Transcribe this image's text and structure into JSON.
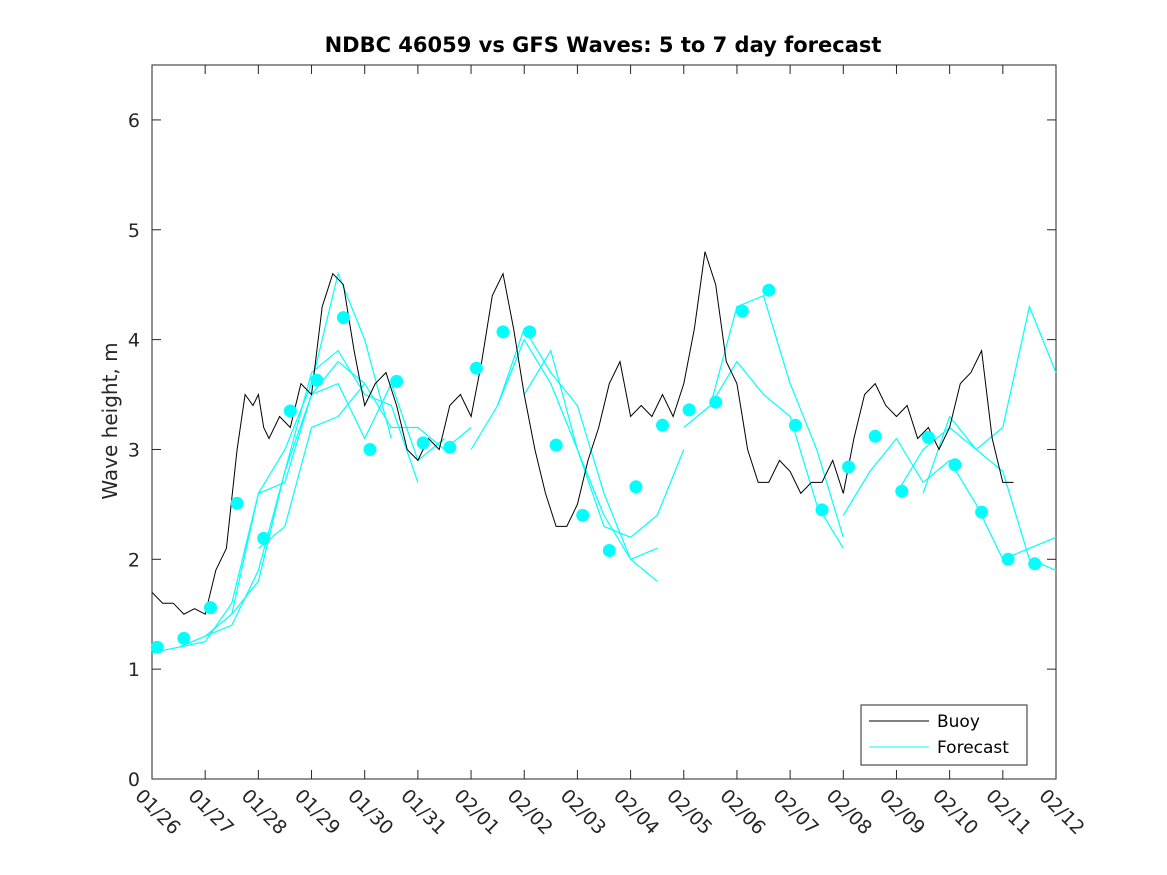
{
  "chart_data": {
    "type": "line",
    "title": "NDBC 46059 vs GFS Waves: 5 to 7 day forecast",
    "xlabel": "",
    "ylabel": "Wave height, m",
    "xlim": [
      0,
      17
    ],
    "ylim": [
      0,
      6.5
    ],
    "x_ticks": [
      0,
      1,
      2,
      3,
      4,
      5,
      6,
      7,
      8,
      9,
      10,
      11,
      12,
      13,
      14,
      15,
      16,
      17
    ],
    "x_tick_labels": [
      "01/26",
      "01/27",
      "01/28",
      "01/29",
      "01/30",
      "01/31",
      "02/01",
      "02/02",
      "02/03",
      "02/04",
      "02/05",
      "02/06",
      "02/07",
      "02/08",
      "02/09",
      "02/10",
      "02/11",
      "02/12"
    ],
    "y_ticks": [
      0,
      1,
      2,
      3,
      4,
      5,
      6
    ],
    "y_tick_labels": [
      "0",
      "1",
      "2",
      "3",
      "4",
      "5",
      "6"
    ],
    "legend": {
      "position": "bottom-right",
      "entries": [
        "Buoy",
        "Forecast"
      ]
    },
    "colors": {
      "buoy": "#000000",
      "forecast": "#00ffff",
      "axis": "#262626"
    },
    "series": [
      {
        "name": "Buoy",
        "x": [
          0,
          0.2,
          0.4,
          0.6,
          0.8,
          1.0,
          1.2,
          1.4,
          1.6,
          1.75,
          1.9,
          2.0,
          2.1,
          2.2,
          2.4,
          2.6,
          2.8,
          3.0,
          3.2,
          3.4,
          3.6,
          3.8,
          4.0,
          4.2,
          4.4,
          4.6,
          4.8,
          5.0,
          5.2,
          5.4,
          5.6,
          5.8,
          6.0,
          6.2,
          6.4,
          6.6,
          6.8,
          6.9,
          7.0,
          7.2,
          7.4,
          7.6,
          7.8,
          8.0,
          8.2,
          8.4,
          8.6,
          8.8,
          9.0,
          9.2,
          9.4,
          9.6,
          9.8,
          10.0,
          10.2,
          10.4,
          10.6,
          10.8,
          11.0,
          11.1,
          11.2,
          11.4,
          11.6,
          11.8,
          12.0,
          12.2,
          12.4,
          12.6,
          12.8,
          13.0,
          13.2,
          13.4,
          13.6,
          13.8,
          14.0,
          14.2,
          14.4,
          14.6,
          14.8,
          15.0,
          15.2,
          15.4,
          15.6,
          15.8,
          16.0,
          16.2
        ],
        "y": [
          1.7,
          1.6,
          1.6,
          1.5,
          1.55,
          1.5,
          1.9,
          2.1,
          3.0,
          3.5,
          3.4,
          3.5,
          3.2,
          3.1,
          3.3,
          3.2,
          3.6,
          3.5,
          4.3,
          4.6,
          4.5,
          3.9,
          3.4,
          3.6,
          3.7,
          3.4,
          3.0,
          2.9,
          3.1,
          3.0,
          3.4,
          3.5,
          3.3,
          3.8,
          4.4,
          4.6,
          4.1,
          3.8,
          3.5,
          3.0,
          2.6,
          2.3,
          2.3,
          2.5,
          2.9,
          3.2,
          3.6,
          3.8,
          3.3,
          3.4,
          3.3,
          3.5,
          3.3,
          3.6,
          4.1,
          4.8,
          4.5,
          3.8,
          3.6,
          3.3,
          3.0,
          2.7,
          2.7,
          2.9,
          2.8,
          2.6,
          2.7,
          2.7,
          2.9,
          2.6,
          3.1,
          3.5,
          3.6,
          3.4,
          3.3,
          3.4,
          3.1,
          3.2,
          3.0,
          3.2,
          3.6,
          3.7,
          3.9,
          3.1,
          2.7,
          2.7
        ]
      },
      {
        "name": "Forecast",
        "segments": [
          {
            "x": [
              0,
              0.5,
              1.0,
              1.5,
              2.0,
              2.5,
              3.0,
              3.5,
              4.0
            ],
            "y": [
              1.15,
              1.2,
              1.3,
              1.5,
              1.8,
              2.8,
              3.5,
              3.8,
              3.6
            ]
          },
          {
            "x": [
              0.5,
              1.0,
              1.5,
              2.0,
              2.5,
              3.0,
              3.5,
              4.0,
              4.5
            ],
            "y": [
              1.2,
              1.25,
              1.6,
              2.6,
              3.0,
              3.6,
              4.6,
              4.0,
              3.1
            ]
          },
          {
            "x": [
              1.0,
              1.5,
              2.0,
              2.5,
              3.0,
              3.5,
              4.0,
              4.5,
              5.0
            ],
            "y": [
              1.3,
              1.4,
              1.9,
              2.8,
              3.7,
              3.9,
              3.5,
              3.4,
              2.7
            ]
          },
          {
            "x": [
              1.5,
              2.0,
              2.5,
              3.0,
              3.5,
              4.0,
              4.5,
              5.0,
              5.5
            ],
            "y": [
              1.5,
              2.6,
              2.7,
              3.5,
              3.6,
              3.1,
              3.6,
              2.9,
              3.1
            ]
          },
          {
            "x": [
              2.0,
              2.5,
              3.0,
              3.5,
              4.0,
              4.5,
              5.0,
              5.5,
              6.0
            ],
            "y": [
              2.1,
              2.3,
              3.2,
              3.3,
              3.6,
              3.2,
              3.2,
              3.0,
              3.2
            ]
          },
          {
            "x": [
              6.0,
              6.5,
              7.0,
              7.5,
              8.0,
              8.5,
              9.0,
              9.5
            ],
            "y": [
              3.0,
              3.4,
              4.1,
              3.7,
              3.4,
              2.6,
              2.0,
              1.8
            ]
          },
          {
            "x": [
              6.5,
              7.0,
              7.5,
              8.0,
              8.5,
              9.0,
              9.5
            ],
            "y": [
              3.4,
              4.0,
              3.6,
              3.0,
              2.4,
              2.0,
              2.1
            ]
          },
          {
            "x": [
              7.0,
              7.5,
              8.0,
              8.5,
              9.0,
              9.5,
              10.0
            ],
            "y": [
              3.5,
              3.9,
              3.0,
              2.3,
              2.2,
              2.4,
              3.0
            ]
          },
          {
            "x": [
              10.0,
              10.5,
              11.0,
              11.5,
              12.0,
              12.5,
              13.0
            ],
            "y": [
              3.2,
              3.4,
              4.3,
              4.4,
              3.6,
              3.0,
              2.2
            ]
          },
          {
            "x": [
              10.5,
              11.0,
              11.5,
              12.0,
              12.5,
              13.0
            ],
            "y": [
              3.4,
              3.8,
              3.5,
              3.3,
              2.5,
              2.1
            ]
          },
          {
            "x": [
              13.0,
              13.5,
              14.0,
              14.5,
              15.0,
              15.5,
              16.0,
              16.5,
              17.0
            ],
            "y": [
              2.4,
              2.8,
              3.1,
              2.7,
              2.9,
              2.5,
              2.0,
              2.1,
              2.2
            ]
          },
          {
            "x": [
              14.0,
              14.5,
              15.0,
              15.5,
              16.0,
              16.5,
              17.0
            ],
            "y": [
              2.6,
              3.0,
              3.2,
              3.0,
              3.2,
              4.3,
              3.7
            ]
          },
          {
            "x": [
              14.5,
              15.0,
              15.5,
              16.0,
              16.5,
              17.0
            ],
            "y": [
              2.6,
              3.3,
              3.0,
              2.8,
              2.0,
              1.9
            ]
          }
        ]
      },
      {
        "name": "Forecast points",
        "x": [
          0.1,
          0.6,
          1.1,
          1.6,
          2.1,
          2.6,
          3.1,
          3.6,
          4.1,
          4.6,
          5.1,
          5.6,
          6.1,
          6.6,
          7.1,
          7.6,
          8.1,
          8.6,
          9.1,
          9.6,
          10.1,
          10.6,
          11.1,
          11.6,
          12.1,
          12.6,
          13.1,
          13.6,
          14.1,
          14.6,
          15.1,
          15.6,
          16.1,
          16.6
        ],
        "y": [
          1.2,
          1.28,
          1.56,
          2.51,
          2.19,
          3.35,
          3.63,
          4.2,
          3.0,
          3.62,
          3.06,
          3.02,
          3.74,
          4.07,
          4.07,
          3.04,
          2.4,
          2.08,
          2.66,
          3.22,
          3.36,
          3.43,
          4.26,
          4.45,
          3.22,
          2.45,
          2.84,
          3.12,
          2.62,
          3.11,
          2.86,
          2.43,
          2.0,
          1.96
        ]
      }
    ]
  }
}
